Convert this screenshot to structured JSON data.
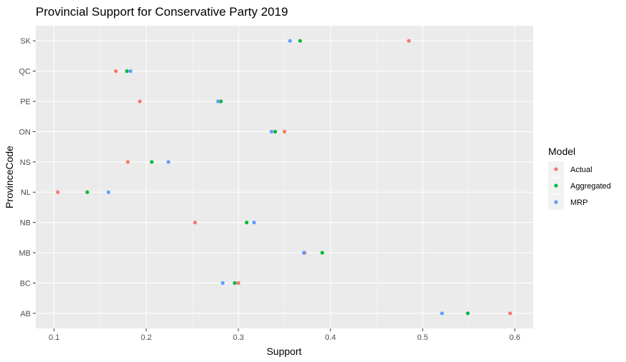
{
  "chart_data": {
    "type": "scatter",
    "title": "Provincial Support for Conservative Party 2019",
    "xlabel": "Support",
    "ylabel": "ProvinceCode",
    "xlim": [
      0.08,
      0.62
    ],
    "x_ticks": [
      "0.1",
      "0.2",
      "0.3",
      "0.4",
      "0.5",
      "0.6"
    ],
    "categories": [
      "AB",
      "BC",
      "MB",
      "NB",
      "NL",
      "NS",
      "ON",
      "PE",
      "QC",
      "SK"
    ],
    "grid": true,
    "legend": {
      "title": "Model",
      "position": "right"
    },
    "series": [
      {
        "name": "Actual",
        "color": "#F8766D",
        "values": [
          0.595,
          0.3,
          0.372,
          0.253,
          0.104,
          0.18,
          0.35,
          0.193,
          0.167,
          0.485
        ]
      },
      {
        "name": "Aggregated",
        "color": "#00BA38",
        "values": [
          0.549,
          0.296,
          0.391,
          0.309,
          0.136,
          0.206,
          0.34,
          0.281,
          0.179,
          0.367
        ]
      },
      {
        "name": "MRP",
        "color": "#619CFF",
        "values": [
          0.521,
          0.283,
          0.371,
          0.317,
          0.159,
          0.224,
          0.336,
          0.278,
          0.183,
          0.356
        ]
      }
    ]
  }
}
